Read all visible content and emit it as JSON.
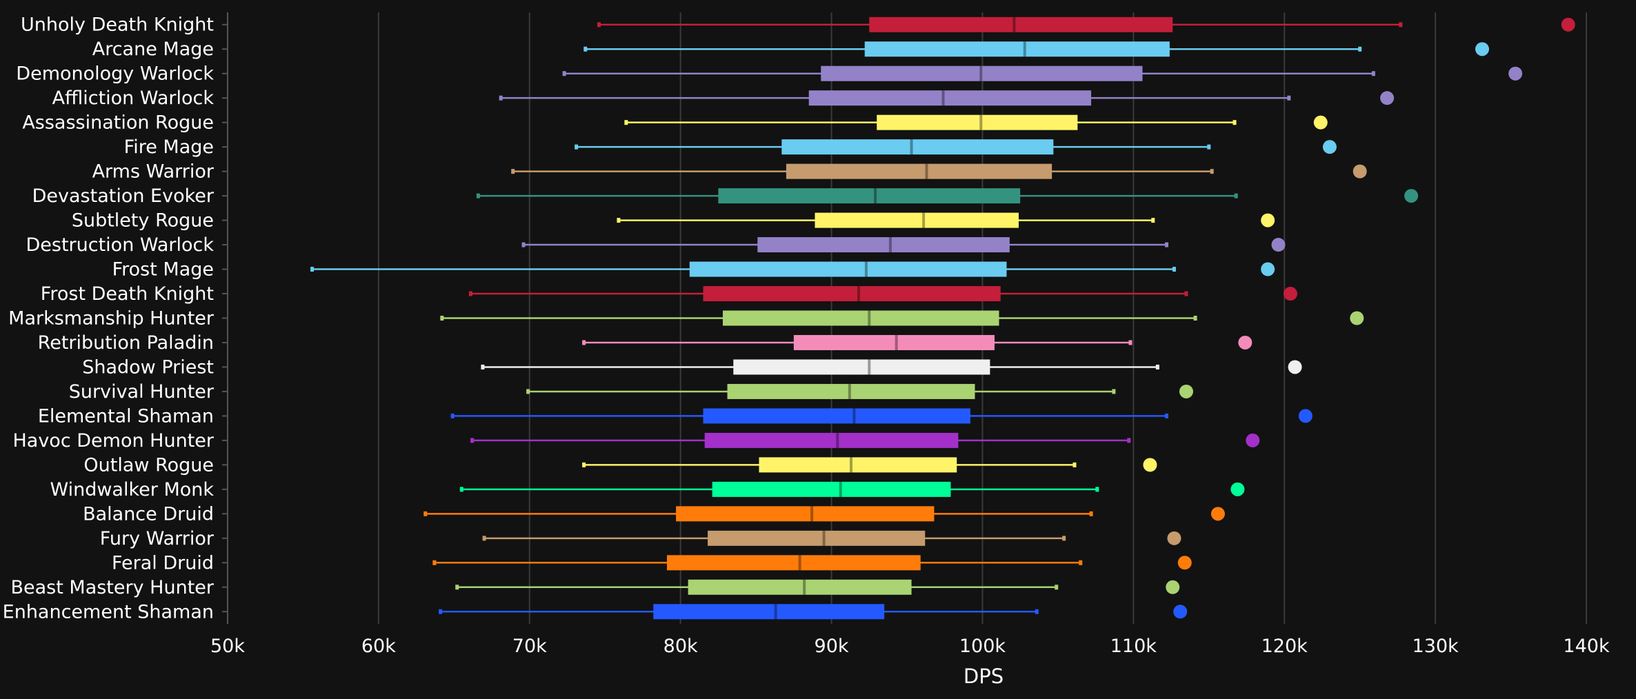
{
  "chart_data": {
    "type": "box",
    "title": "",
    "xlabel": "DPS",
    "ylabel": "",
    "xlim": [
      50000,
      140000
    ],
    "x_ticks": [
      {
        "value": 50000,
        "label": "50k"
      },
      {
        "value": 60000,
        "label": "60k"
      },
      {
        "value": 70000,
        "label": "70k"
      },
      {
        "value": 80000,
        "label": "80k"
      },
      {
        "value": 90000,
        "label": "90k"
      },
      {
        "value": 100000,
        "label": "100k"
      },
      {
        "value": 110000,
        "label": "110k"
      },
      {
        "value": 120000,
        "label": "120k"
      },
      {
        "value": 130000,
        "label": "130k"
      },
      {
        "value": 140000,
        "label": "140k"
      }
    ],
    "grid": true,
    "series": [
      {
        "name": "Unholy Death Knight",
        "color": "#C41E3A",
        "min": 74600,
        "q1": 92500,
        "median": 102100,
        "q3": 112600,
        "max": 127700,
        "outlier": 138800
      },
      {
        "name": "Arcane Mage",
        "color": "#69CCF0",
        "min": 73700,
        "q1": 92200,
        "median": 102800,
        "q3": 112400,
        "max": 125000,
        "outlier": 133100
      },
      {
        "name": "Demonology Warlock",
        "color": "#9482C9",
        "min": 72300,
        "q1": 89300,
        "median": 99900,
        "q3": 110600,
        "max": 125900,
        "outlier": 135300
      },
      {
        "name": "Affliction Warlock",
        "color": "#9482C9",
        "min": 68100,
        "q1": 88500,
        "median": 97400,
        "q3": 107200,
        "max": 120300,
        "outlier": 126800
      },
      {
        "name": "Assassination Rogue",
        "color": "#FFF468",
        "min": 76400,
        "q1": 93000,
        "median": 99900,
        "q3": 106300,
        "max": 116700,
        "outlier": 122400
      },
      {
        "name": "Fire Mage",
        "color": "#69CCF0",
        "min": 73100,
        "q1": 86700,
        "median": 95300,
        "q3": 104700,
        "max": 115000,
        "outlier": 123000
      },
      {
        "name": "Arms Warrior",
        "color": "#C69B6D",
        "min": 68900,
        "q1": 87000,
        "median": 96300,
        "q3": 104600,
        "max": 115200,
        "outlier": 125000
      },
      {
        "name": "Devastation Evoker",
        "color": "#33937F",
        "min": 66600,
        "q1": 82500,
        "median": 92900,
        "q3": 102500,
        "max": 116800,
        "outlier": 128400
      },
      {
        "name": "Subtlety Rogue",
        "color": "#FFF468",
        "min": 75900,
        "q1": 88900,
        "median": 96100,
        "q3": 102400,
        "max": 111300,
        "outlier": 118900
      },
      {
        "name": "Destruction Warlock",
        "color": "#9482C9",
        "min": 69600,
        "q1": 85100,
        "median": 93900,
        "q3": 101800,
        "max": 112200,
        "outlier": 119600
      },
      {
        "name": "Frost Mage",
        "color": "#69CCF0",
        "min": 55600,
        "q1": 80600,
        "median": 92300,
        "q3": 101600,
        "max": 112700,
        "outlier": 118900
      },
      {
        "name": "Frost Death Knight",
        "color": "#C41E3A",
        "min": 66100,
        "q1": 81500,
        "median": 91800,
        "q3": 101200,
        "max": 113500,
        "outlier": 120400
      },
      {
        "name": "Marksmanship Hunter",
        "color": "#AAD372",
        "min": 64200,
        "q1": 82800,
        "median": 92500,
        "q3": 101100,
        "max": 114100,
        "outlier": 124800
      },
      {
        "name": "Retribution Paladin",
        "color": "#F48CBA",
        "min": 73600,
        "q1": 87500,
        "median": 94300,
        "q3": 100800,
        "max": 109800,
        "outlier": 117400
      },
      {
        "name": "Shadow Priest",
        "color": "#EFEFEF",
        "min": 66900,
        "q1": 83500,
        "median": 92500,
        "q3": 100500,
        "max": 111600,
        "outlier": 120700
      },
      {
        "name": "Survival Hunter",
        "color": "#AAD372",
        "min": 69900,
        "q1": 83100,
        "median": 91200,
        "q3": 99500,
        "max": 108700,
        "outlier": 113500
      },
      {
        "name": "Elemental Shaman",
        "color": "#2459FF",
        "min": 64900,
        "q1": 81500,
        "median": 91500,
        "q3": 99200,
        "max": 112200,
        "outlier": 121400
      },
      {
        "name": "Havoc Demon Hunter",
        "color": "#A330C9",
        "min": 66200,
        "q1": 81600,
        "median": 90400,
        "q3": 98400,
        "max": 109700,
        "outlier": 117900
      },
      {
        "name": "Outlaw Rogue",
        "color": "#FFF468",
        "min": 73600,
        "q1": 85200,
        "median": 91300,
        "q3": 98300,
        "max": 106100,
        "outlier": 111100
      },
      {
        "name": "Windwalker Monk",
        "color": "#00FF98",
        "min": 65500,
        "q1": 82100,
        "median": 90600,
        "q3": 97900,
        "max": 107600,
        "outlier": 116900
      },
      {
        "name": "Balance Druid",
        "color": "#FF7C0A",
        "min": 63100,
        "q1": 79700,
        "median": 88700,
        "q3": 96800,
        "max": 107200,
        "outlier": 115600
      },
      {
        "name": "Fury Warrior",
        "color": "#C69B6D",
        "min": 67000,
        "q1": 81800,
        "median": 89500,
        "q3": 96200,
        "max": 105400,
        "outlier": 112700
      },
      {
        "name": "Feral Druid",
        "color": "#FF7C0A",
        "min": 63700,
        "q1": 79100,
        "median": 87900,
        "q3": 95900,
        "max": 106500,
        "outlier": 113400
      },
      {
        "name": "Beast Mastery Hunter",
        "color": "#AAD372",
        "min": 65200,
        "q1": 80500,
        "median": 88200,
        "q3": 95300,
        "max": 104900,
        "outlier": 112600
      },
      {
        "name": "Enhancement Shaman",
        "color": "#2459FF",
        "min": 64100,
        "q1": 78200,
        "median": 86300,
        "q3": 93500,
        "max": 103600,
        "outlier": 113100
      }
    ]
  }
}
